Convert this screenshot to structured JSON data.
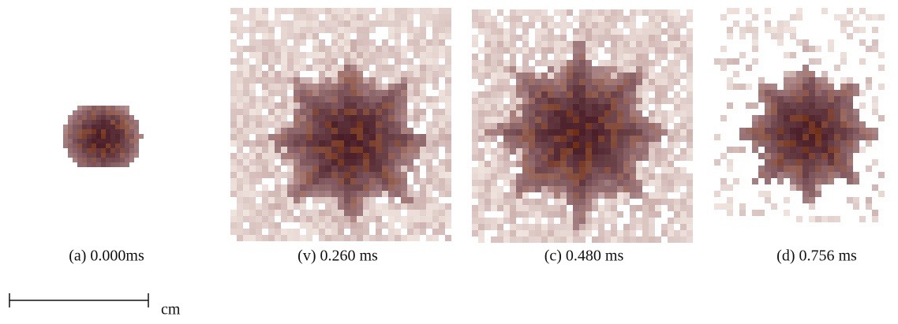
{
  "panels": [
    {
      "caption": "(a) 0.000ms"
    },
    {
      "caption": "(v) 0.260 ms"
    },
    {
      "caption": "(c) 0.480 ms"
    },
    {
      "caption": "(d) 0.756 ms"
    }
  ],
  "scale_bar": {
    "label": "cm"
  }
}
